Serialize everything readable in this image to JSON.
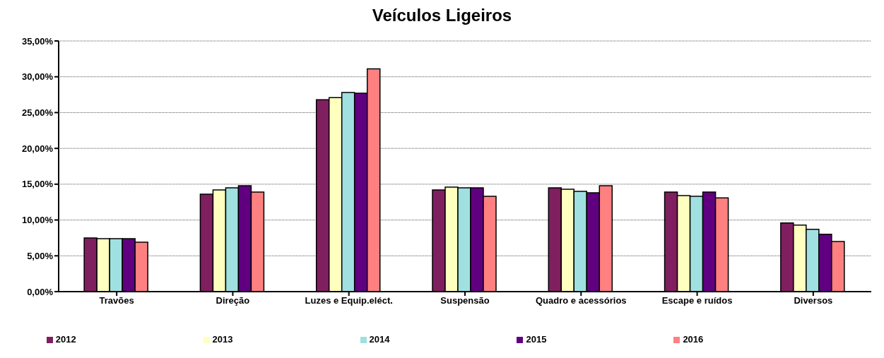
{
  "chart_data": {
    "type": "bar",
    "title": "Veículos Ligeiros",
    "categories": [
      "Travões",
      "Direção",
      "Luzes e Equip.eléct.",
      "Suspensão",
      "Quadro e acessórios",
      "Escape e ruídos",
      "Diversos"
    ],
    "series": [
      {
        "name": "2012",
        "color": "#7f1f5f",
        "values": [
          7.5,
          13.6,
          26.8,
          14.2,
          14.5,
          13.9,
          9.6
        ]
      },
      {
        "name": "2013",
        "color": "#ffffc0",
        "values": [
          7.4,
          14.2,
          27.1,
          14.6,
          14.3,
          13.4,
          9.3
        ]
      },
      {
        "name": "2014",
        "color": "#a0e0e0",
        "values": [
          7.4,
          14.5,
          27.8,
          14.5,
          14.0,
          13.3,
          8.7
        ]
      },
      {
        "name": "2015",
        "color": "#600080",
        "values": [
          7.4,
          14.8,
          27.7,
          14.5,
          13.8,
          13.9,
          8.0
        ]
      },
      {
        "name": "2016",
        "color": "#ff8080",
        "values": [
          6.9,
          13.9,
          31.1,
          13.3,
          14.8,
          13.1,
          7.0
        ]
      }
    ],
    "ylim": [
      0,
      35
    ],
    "yticks": [
      {
        "value": 0,
        "label": "0,00%"
      },
      {
        "value": 5,
        "label": "5,00%"
      },
      {
        "value": 10,
        "label": "10,00%"
      },
      {
        "value": 15,
        "label": "15,00%"
      },
      {
        "value": 20,
        "label": "20,00%"
      },
      {
        "value": 25,
        "label": "25,00%"
      },
      {
        "value": 30,
        "label": "30,00%"
      },
      {
        "value": 35,
        "label": "35,00%"
      }
    ],
    "grid": "y",
    "legend": "bottom"
  }
}
